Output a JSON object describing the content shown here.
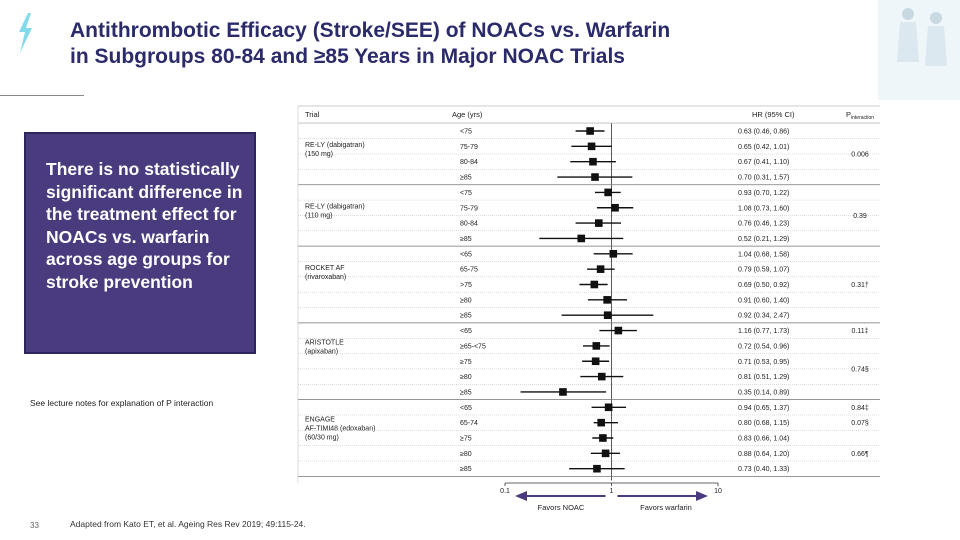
{
  "title_line1": "Antithrombotic Efficacy (Stroke/SEE) of NOACs vs. Warfarin",
  "title_line2": "in Subgroups 80-84 and ≥85 Years in Major NOAC Trials",
  "callout": "There is no statistically significant difference in the treatment effect for NOACs vs. warfarin across age groups for stroke prevention",
  "footnote": "See lecture notes for explanation of P interaction",
  "page_number": "33",
  "source": "Adapted from Kato ET, et al. Ageing Res Rev 2019; 49:115-24.",
  "colors": {
    "title": "#2b2b6b",
    "callout_bg": "#4a3b7f",
    "bracket": "#4a3b7f",
    "marker": "#111111"
  },
  "icons": [
    "lightning-logo-icon",
    "clinicians-photo-icon"
  ],
  "chart_data": {
    "type": "forest",
    "scale": "log",
    "headers": {
      "trial": "Trial",
      "age": "Age (yrs)",
      "hr": "HR (95% CI)",
      "p_main": "P",
      "p_sub": "interaction"
    },
    "x_ticks": [
      0.1,
      1,
      10
    ],
    "x_tick_labels": [
      "0.1",
      "1",
      "10"
    ],
    "favors_left": "Favors NOAC",
    "favors_right": "Favors warfarin",
    "groups": [
      {
        "trial": [
          "RE-LY (dabigatran)",
          "(150 mg)"
        ],
        "p": "0.006",
        "rows": [
          {
            "age": "<75",
            "hr": 0.63,
            "lo": 0.46,
            "hi": 0.86,
            "text": "0.63 (0.46, 0.86)"
          },
          {
            "age": "75-79",
            "hr": 0.65,
            "lo": 0.42,
            "hi": 1.01,
            "text": "0.65 (0.42, 1.01)"
          },
          {
            "age": "80-84",
            "hr": 0.67,
            "lo": 0.41,
            "hi": 1.1,
            "text": "0.67 (0.41, 1.10)"
          },
          {
            "age": "≥85",
            "hr": 0.7,
            "lo": 0.31,
            "hi": 1.57,
            "text": "0.70 (0.31, 1.57)"
          }
        ]
      },
      {
        "trial": [
          "RE-LY (dabigatran)",
          "(110 mg)"
        ],
        "p": "0.39",
        "rows": [
          {
            "age": "<75",
            "hr": 0.93,
            "lo": 0.7,
            "hi": 1.22,
            "text": "0.93 (0.70, 1.22)"
          },
          {
            "age": "75-79",
            "hr": 1.08,
            "lo": 0.73,
            "hi": 1.6,
            "text": "1.08 (0.73, 1.60)"
          },
          {
            "age": "80-84",
            "hr": 0.76,
            "lo": 0.46,
            "hi": 1.23,
            "text": "0.76 (0.46, 1.23)"
          },
          {
            "age": "≥85",
            "hr": 0.52,
            "lo": 0.21,
            "hi": 1.29,
            "text": "0.52 (0.21, 1.29)"
          }
        ]
      },
      {
        "trial": [
          "ROCKET AF",
          "(rivaroxaban)"
        ],
        "p": "0.31†",
        "rows": [
          {
            "age": "<65",
            "hr": 1.04,
            "lo": 0.68,
            "hi": 1.58,
            "text": "1.04 (0.68, 1.58)"
          },
          {
            "age": "65-75",
            "hr": 0.79,
            "lo": 0.59,
            "hi": 1.07,
            "text": "0.79 (0.59, 1.07)"
          },
          {
            "age": ">75",
            "hr": 0.69,
            "lo": 0.5,
            "hi": 0.92,
            "text": "0.69 (0.50, 0.92)"
          },
          {
            "age": "≥80",
            "hr": 0.91,
            "lo": 0.6,
            "hi": 1.4,
            "text": "0.91 (0.60, 1.40)"
          },
          {
            "age": "≥85",
            "hr": 0.92,
            "lo": 0.34,
            "hi": 2.47,
            "text": "0.92 (0.34, 2.47)"
          }
        ]
      },
      {
        "trial": [
          "ARISTOTLE",
          "(apixaban)"
        ],
        "p": "0.11‡",
        "rows": [
          {
            "age": "<65",
            "hr": 1.16,
            "lo": 0.77,
            "hi": 1.73,
            "text": "1.16 (0.77, 1.73)"
          }
        ]
      },
      {
        "trial": [],
        "p": "0.74§",
        "rows": [
          {
            "age": "≥65-<75",
            "hr": 0.72,
            "lo": 0.54,
            "hi": 0.96,
            "text": "0.72 (0.54, 0.96)"
          },
          {
            "age": "≥75",
            "hr": 0.71,
            "lo": 0.53,
            "hi": 0.95,
            "text": "0.71 (0.53, 0.95)"
          },
          {
            "age": "≥80",
            "hr": 0.81,
            "lo": 0.51,
            "hi": 1.29,
            "text": "0.81 (0.51, 1.29)"
          },
          {
            "age": "≥85",
            "hr": 0.35,
            "lo": 0.14,
            "hi": 0.89,
            "text": "0.35 (0.14, 0.89)"
          }
        ]
      },
      {
        "trial": [
          "ENGAGE",
          "AF-TIMI48 (edoxaban)",
          "(60/30 mg)"
        ],
        "p": "0.84‡",
        "rows": [
          {
            "age": "<65",
            "hr": 0.94,
            "lo": 0.65,
            "hi": 1.37,
            "text": "0.94 (0.65, 1.37)"
          }
        ]
      },
      {
        "trial": [],
        "p": "0.07§",
        "rows": [
          {
            "age": "65-74",
            "hr": 0.8,
            "lo": 0.68,
            "hi": 1.15,
            "text": "0.80 (0.68, 1.15)"
          }
        ]
      },
      {
        "trial": [],
        "p": "0.66¶",
        "rows": [
          {
            "age": "≥75",
            "hr": 0.83,
            "lo": 0.66,
            "hi": 1.04,
            "text": "0.83 (0.66, 1.04)"
          },
          {
            "age": "≥80",
            "hr": 0.88,
            "lo": 0.64,
            "hi": 1.2,
            "text": "0.88 (0.64, 1.20)"
          },
          {
            "age": "≥85",
            "hr": 0.73,
            "lo": 0.4,
            "hi": 1.33,
            "text": "0.73 (0.40, 1.33)"
          }
        ]
      }
    ]
  }
}
